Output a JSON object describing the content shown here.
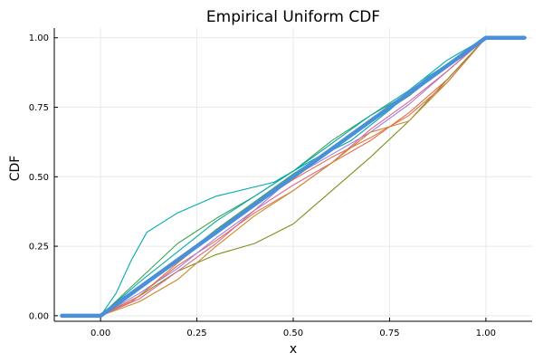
{
  "chart_data": {
    "type": "line",
    "title": "Empirical Uniform CDF",
    "xlabel": "x",
    "ylabel": "CDF",
    "xlim": [
      -0.12,
      1.12
    ],
    "ylim": [
      -0.02,
      1.035
    ],
    "xticks": [
      "0.00",
      "0.25",
      "0.50",
      "0.75",
      "1.00"
    ],
    "yticks": [
      "0.00",
      "0.25",
      "0.50",
      "0.75",
      "1.00"
    ],
    "grid": true,
    "legend": "none",
    "series": [
      {
        "color": "#00a9ad",
        "x": [
          -0.1,
          0.0,
          0.04,
          0.08,
          0.12,
          0.2,
          0.3,
          0.45,
          0.55,
          0.65,
          0.75,
          0.85,
          0.95,
          1.0,
          1.1
        ],
        "y": [
          0,
          0,
          0.08,
          0.2,
          0.3,
          0.37,
          0.43,
          0.48,
          0.56,
          0.63,
          0.74,
          0.86,
          0.95,
          1,
          1
        ]
      },
      {
        "color": "#3da44d",
        "x": [
          -0.1,
          0.0,
          0.1,
          0.2,
          0.3,
          0.4,
          0.5,
          0.6,
          0.7,
          0.8,
          0.9,
          0.95,
          1.0,
          1.1
        ],
        "y": [
          0,
          0,
          0.13,
          0.26,
          0.35,
          0.43,
          0.52,
          0.63,
          0.72,
          0.8,
          0.9,
          0.94,
          1,
          1
        ]
      },
      {
        "color": "#e26f46",
        "x": [
          -0.1,
          0.0,
          0.08,
          0.2,
          0.3,
          0.4,
          0.5,
          0.6,
          0.7,
          0.8,
          0.9,
          1.0,
          1.1
        ],
        "y": [
          0,
          0,
          0.05,
          0.18,
          0.27,
          0.37,
          0.45,
          0.55,
          0.63,
          0.73,
          0.85,
          1,
          1
        ]
      },
      {
        "color": "#9b7fe9",
        "x": [
          -0.1,
          0.0,
          0.1,
          0.2,
          0.3,
          0.4,
          0.5,
          0.6,
          0.7,
          0.8,
          0.9,
          1.0,
          1.1
        ],
        "y": [
          0,
          0,
          0.08,
          0.17,
          0.28,
          0.38,
          0.5,
          0.58,
          0.66,
          0.76,
          0.88,
          1,
          1
        ]
      },
      {
        "color": "#7d8f1e",
        "x": [
          -0.1,
          0.0,
          0.1,
          0.2,
          0.3,
          0.4,
          0.5,
          0.55,
          0.6,
          0.7,
          0.8,
          0.9,
          1.0,
          1.1
        ],
        "y": [
          0,
          0,
          0.07,
          0.16,
          0.22,
          0.26,
          0.33,
          0.39,
          0.45,
          0.57,
          0.7,
          0.85,
          1,
          1
        ]
      },
      {
        "color": "#e0678f",
        "x": [
          -0.1,
          0.0,
          0.1,
          0.2,
          0.3,
          0.4,
          0.5,
          0.6,
          0.7,
          0.8,
          0.9,
          1.0,
          1.1
        ],
        "y": [
          0,
          0,
          0.06,
          0.16,
          0.26,
          0.38,
          0.47,
          0.55,
          0.67,
          0.77,
          0.88,
          1,
          1
        ]
      },
      {
        "color": "#c88a2a",
        "x": [
          -0.1,
          0.0,
          0.1,
          0.2,
          0.3,
          0.4,
          0.5,
          0.6,
          0.7,
          0.8,
          0.9,
          1.0,
          1.1
        ],
        "y": [
          0,
          0,
          0.05,
          0.13,
          0.25,
          0.36,
          0.45,
          0.55,
          0.66,
          0.7,
          0.84,
          1,
          1
        ]
      },
      {
        "color": "#00a9ad",
        "x": [
          -0.1,
          0.0,
          0.1,
          0.2,
          0.3,
          0.4,
          0.5,
          0.6,
          0.7,
          0.8,
          0.9,
          1.0,
          1.1
        ],
        "y": [
          0,
          0,
          0.12,
          0.23,
          0.34,
          0.43,
          0.52,
          0.62,
          0.72,
          0.81,
          0.92,
          1,
          1
        ]
      },
      {
        "color": "#e26f46",
        "x": [
          -0.1,
          0.0,
          0.1,
          0.2,
          0.3,
          0.4,
          0.5,
          0.6,
          0.7,
          0.8,
          0.9,
          1.0,
          1.1
        ],
        "y": [
          0,
          0,
          0.07,
          0.19,
          0.3,
          0.4,
          0.49,
          0.57,
          0.64,
          0.72,
          0.84,
          1,
          1
        ]
      },
      {
        "color": "#3da44d",
        "x": [
          -0.1,
          0.0,
          0.1,
          0.2,
          0.3,
          0.4,
          0.5,
          0.6,
          0.7,
          0.8,
          0.9,
          1.0,
          1.1
        ],
        "y": [
          0,
          0,
          0.1,
          0.2,
          0.31,
          0.41,
          0.51,
          0.6,
          0.7,
          0.79,
          0.9,
          1,
          1
        ]
      },
      {
        "color": "#4a90d9",
        "x": [
          -0.1,
          0.0,
          0.25,
          0.5,
          0.75,
          1.0,
          1.1
        ],
        "y": [
          0,
          0,
          0.25,
          0.5,
          0.75,
          1,
          1
        ],
        "thick": true
      }
    ]
  }
}
